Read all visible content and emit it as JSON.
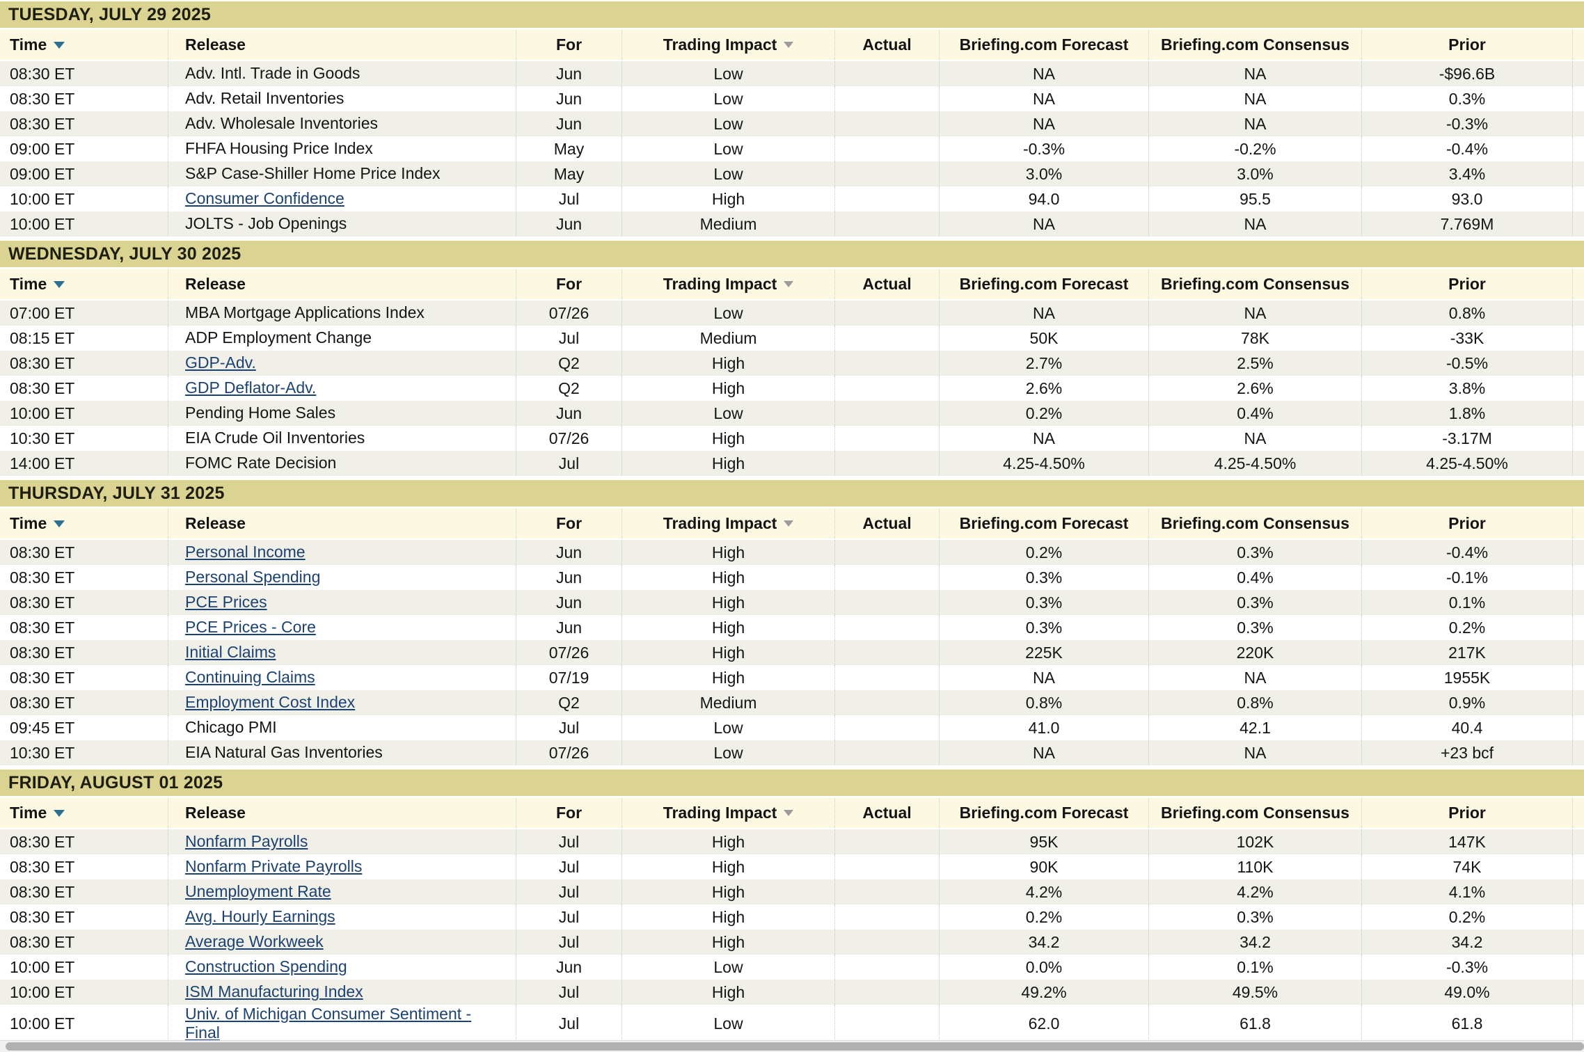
{
  "table": {
    "columns": [
      {
        "key": "time",
        "label": "Time",
        "align": "left",
        "sort_icon": "blue-down"
      },
      {
        "key": "release",
        "label": "Release",
        "align": "left",
        "sort_icon": null
      },
      {
        "key": "for",
        "label": "For",
        "align": "center",
        "sort_icon": null
      },
      {
        "key": "impact",
        "label": "Trading Impact",
        "align": "center",
        "sort_icon": "gray-down"
      },
      {
        "key": "actual",
        "label": "Actual",
        "align": "center",
        "sort_icon": null
      },
      {
        "key": "forecast",
        "label": "Briefing.com Forecast",
        "align": "center",
        "sort_icon": null
      },
      {
        "key": "consensus",
        "label": "Briefing.com Consensus",
        "align": "center",
        "sort_icon": null
      },
      {
        "key": "prior",
        "label": "Prior",
        "align": "center",
        "sort_icon": null
      }
    ],
    "sections": [
      {
        "day": "TUESDAY, JULY 29 2025",
        "rows": [
          {
            "time": "08:30 ET",
            "release": "Adv. Intl. Trade in Goods",
            "link": false,
            "for": "Jun",
            "impact": "Low",
            "actual": "",
            "forecast": "NA",
            "consensus": "NA",
            "prior": "-$96.6B"
          },
          {
            "time": "08:30 ET",
            "release": "Adv. Retail Inventories",
            "link": false,
            "for": "Jun",
            "impact": "Low",
            "actual": "",
            "forecast": "NA",
            "consensus": "NA",
            "prior": "0.3%"
          },
          {
            "time": "08:30 ET",
            "release": "Adv. Wholesale Inventories",
            "link": false,
            "for": "Jun",
            "impact": "Low",
            "actual": "",
            "forecast": "NA",
            "consensus": "NA",
            "prior": "-0.3%"
          },
          {
            "time": "09:00 ET",
            "release": "FHFA Housing Price Index",
            "link": false,
            "for": "May",
            "impact": "Low",
            "actual": "",
            "forecast": "-0.3%",
            "consensus": "-0.2%",
            "prior": "-0.4%"
          },
          {
            "time": "09:00 ET",
            "release": "S&P Case-Shiller Home Price Index",
            "link": false,
            "for": "May",
            "impact": "Low",
            "actual": "",
            "forecast": "3.0%",
            "consensus": "3.0%",
            "prior": "3.4%"
          },
          {
            "time": "10:00 ET",
            "release": "Consumer Confidence",
            "link": true,
            "for": "Jul",
            "impact": "High",
            "actual": "",
            "forecast": "94.0",
            "consensus": "95.5",
            "prior": "93.0"
          },
          {
            "time": "10:00 ET",
            "release": "JOLTS - Job Openings",
            "link": false,
            "for": "Jun",
            "impact": "Medium",
            "actual": "",
            "forecast": "NA",
            "consensus": "NA",
            "prior": "7.769M"
          }
        ]
      },
      {
        "day": "WEDNESDAY, JULY 30 2025",
        "rows": [
          {
            "time": "07:00 ET",
            "release": "MBA Mortgage Applications Index",
            "link": false,
            "for": "07/26",
            "impact": "Low",
            "actual": "",
            "forecast": "NA",
            "consensus": "NA",
            "prior": "0.8%"
          },
          {
            "time": "08:15 ET",
            "release": "ADP Employment Change",
            "link": false,
            "for": "Jul",
            "impact": "Medium",
            "actual": "",
            "forecast": "50K",
            "consensus": "78K",
            "prior": "-33K"
          },
          {
            "time": "08:30 ET",
            "release": "GDP-Adv.",
            "link": true,
            "for": "Q2",
            "impact": "High",
            "actual": "",
            "forecast": "2.7%",
            "consensus": "2.5%",
            "prior": "-0.5%"
          },
          {
            "time": "08:30 ET",
            "release": "GDP Deflator-Adv.",
            "link": true,
            "for": "Q2",
            "impact": "High",
            "actual": "",
            "forecast": "2.6%",
            "consensus": "2.6%",
            "prior": "3.8%"
          },
          {
            "time": "10:00 ET",
            "release": "Pending Home Sales",
            "link": false,
            "for": "Jun",
            "impact": "Low",
            "actual": "",
            "forecast": "0.2%",
            "consensus": "0.4%",
            "prior": "1.8%"
          },
          {
            "time": "10:30 ET",
            "release": "EIA Crude Oil Inventories",
            "link": false,
            "for": "07/26",
            "impact": "High",
            "actual": "",
            "forecast": "NA",
            "consensus": "NA",
            "prior": "-3.17M"
          },
          {
            "time": "14:00 ET",
            "release": "FOMC Rate Decision",
            "link": false,
            "for": "Jul",
            "impact": "High",
            "actual": "",
            "forecast": "4.25-4.50%",
            "consensus": "4.25-4.50%",
            "prior": "4.25-4.50%"
          }
        ]
      },
      {
        "day": "THURSDAY, JULY 31 2025",
        "rows": [
          {
            "time": "08:30 ET",
            "release": "Personal Income",
            "link": true,
            "for": "Jun",
            "impact": "High",
            "actual": "",
            "forecast": "0.2%",
            "consensus": "0.3%",
            "prior": "-0.4%"
          },
          {
            "time": "08:30 ET",
            "release": "Personal Spending",
            "link": true,
            "for": "Jun",
            "impact": "High",
            "actual": "",
            "forecast": "0.3%",
            "consensus": "0.4%",
            "prior": "-0.1%"
          },
          {
            "time": "08:30 ET",
            "release": "PCE Prices",
            "link": true,
            "for": "Jun",
            "impact": "High",
            "actual": "",
            "forecast": "0.3%",
            "consensus": "0.3%",
            "prior": "0.1%"
          },
          {
            "time": "08:30 ET",
            "release": "PCE Prices - Core",
            "link": true,
            "for": "Jun",
            "impact": "High",
            "actual": "",
            "forecast": "0.3%",
            "consensus": "0.3%",
            "prior": "0.2%"
          },
          {
            "time": "08:30 ET",
            "release": "Initial Claims",
            "link": true,
            "for": "07/26",
            "impact": "High",
            "actual": "",
            "forecast": "225K",
            "consensus": "220K",
            "prior": "217K"
          },
          {
            "time": "08:30 ET",
            "release": "Continuing Claims",
            "link": true,
            "for": "07/19",
            "impact": "High",
            "actual": "",
            "forecast": "NA",
            "consensus": "NA",
            "prior": "1955K"
          },
          {
            "time": "08:30 ET",
            "release": "Employment Cost Index",
            "link": true,
            "for": "Q2",
            "impact": "Medium",
            "actual": "",
            "forecast": "0.8%",
            "consensus": "0.8%",
            "prior": "0.9%"
          },
          {
            "time": "09:45 ET",
            "release": "Chicago PMI",
            "link": false,
            "for": "Jul",
            "impact": "Low",
            "actual": "",
            "forecast": "41.0",
            "consensus": "42.1",
            "prior": "40.4"
          },
          {
            "time": "10:30 ET",
            "release": "EIA Natural Gas Inventories",
            "link": false,
            "for": "07/26",
            "impact": "Low",
            "actual": "",
            "forecast": "NA",
            "consensus": "NA",
            "prior": "+23 bcf"
          }
        ]
      },
      {
        "day": "FRIDAY, AUGUST 01 2025",
        "rows": [
          {
            "time": "08:30 ET",
            "release": "Nonfarm Payrolls",
            "link": true,
            "for": "Jul",
            "impact": "High",
            "actual": "",
            "forecast": "95K",
            "consensus": "102K",
            "prior": "147K"
          },
          {
            "time": "08:30 ET",
            "release": "Nonfarm Private Payrolls",
            "link": true,
            "for": "Jul",
            "impact": "High",
            "actual": "",
            "forecast": "90K",
            "consensus": "110K",
            "prior": "74K"
          },
          {
            "time": "08:30 ET",
            "release": "Unemployment Rate",
            "link": true,
            "for": "Jul",
            "impact": "High",
            "actual": "",
            "forecast": "4.2%",
            "consensus": "4.2%",
            "prior": "4.1%"
          },
          {
            "time": "08:30 ET",
            "release": "Avg. Hourly Earnings",
            "link": true,
            "for": "Jul",
            "impact": "High",
            "actual": "",
            "forecast": "0.2%",
            "consensus": "0.3%",
            "prior": "0.2%"
          },
          {
            "time": "08:30 ET",
            "release": "Average Workweek",
            "link": true,
            "for": "Jul",
            "impact": "High",
            "actual": "",
            "forecast": "34.2",
            "consensus": "34.2",
            "prior": "34.2"
          },
          {
            "time": "10:00 ET",
            "release": "Construction Spending",
            "link": true,
            "for": "Jun",
            "impact": "Low",
            "actual": "",
            "forecast": "0.0%",
            "consensus": "0.1%",
            "prior": "-0.3%"
          },
          {
            "time": "10:00 ET",
            "release": "ISM Manufacturing Index",
            "link": true,
            "for": "Jul",
            "impact": "High",
            "actual": "",
            "forecast": "49.2%",
            "consensus": "49.5%",
            "prior": "49.0%"
          },
          {
            "time": "10:00 ET",
            "release": "Univ. of Michigan Consumer Sentiment - Final",
            "link": true,
            "for": "Jul",
            "impact": "Low",
            "actual": "",
            "forecast": "62.0",
            "consensus": "61.8",
            "prior": "61.8"
          }
        ]
      }
    ]
  },
  "colors": {
    "day_band_bg": "#dbd392",
    "section_header_bg": "#fcf8e2",
    "row_alt_bg": "#f0f0e8",
    "row_bg": "#ffffff",
    "link": "#1c4273",
    "time_sort_icon": "#2d6e93",
    "impact_sort_icon": "#9b9b9b",
    "scrollbar_track": "#f1f1f1",
    "scrollbar_thumb": "#b1b1b1"
  }
}
